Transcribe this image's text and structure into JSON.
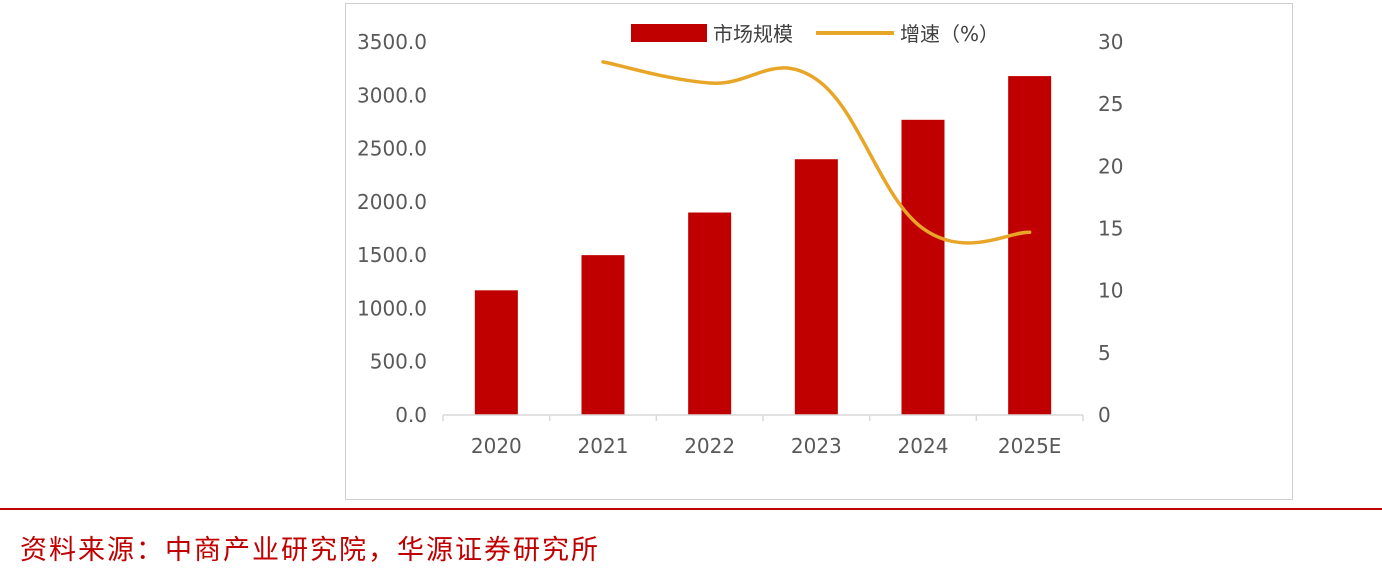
{
  "chart_data": {
    "type": "bar",
    "categories": [
      "2020",
      "2021",
      "2022",
      "2023",
      "2024",
      "2025E"
    ],
    "series": [
      {
        "name": "市场规模",
        "type": "bar",
        "axis": "left",
        "color": "#c00000",
        "values": [
          1170,
          1500,
          1900,
          2400,
          2770,
          3180
        ]
      },
      {
        "name": "增速（%）",
        "type": "line",
        "axis": "right",
        "color": "#e8a628",
        "values": [
          null,
          28.4,
          26.7,
          27.0,
          15.0,
          14.7
        ]
      }
    ],
    "y_left": {
      "ylim": [
        0,
        3500
      ],
      "ticks": [
        "0.0",
        "500.0",
        "1000.0",
        "1500.0",
        "2000.0",
        "2500.0",
        "3000.0",
        "3500.0"
      ]
    },
    "y_right": {
      "ylim": [
        0,
        30
      ],
      "ticks": [
        "0",
        "5",
        "10",
        "15",
        "20",
        "25",
        "30"
      ]
    },
    "legend": {
      "placement": "top-center",
      "labels": [
        "市场规模",
        "增速（%）"
      ]
    },
    "grid": false
  },
  "source_note": "资料来源：中商产业研究院，华源证券研究所"
}
